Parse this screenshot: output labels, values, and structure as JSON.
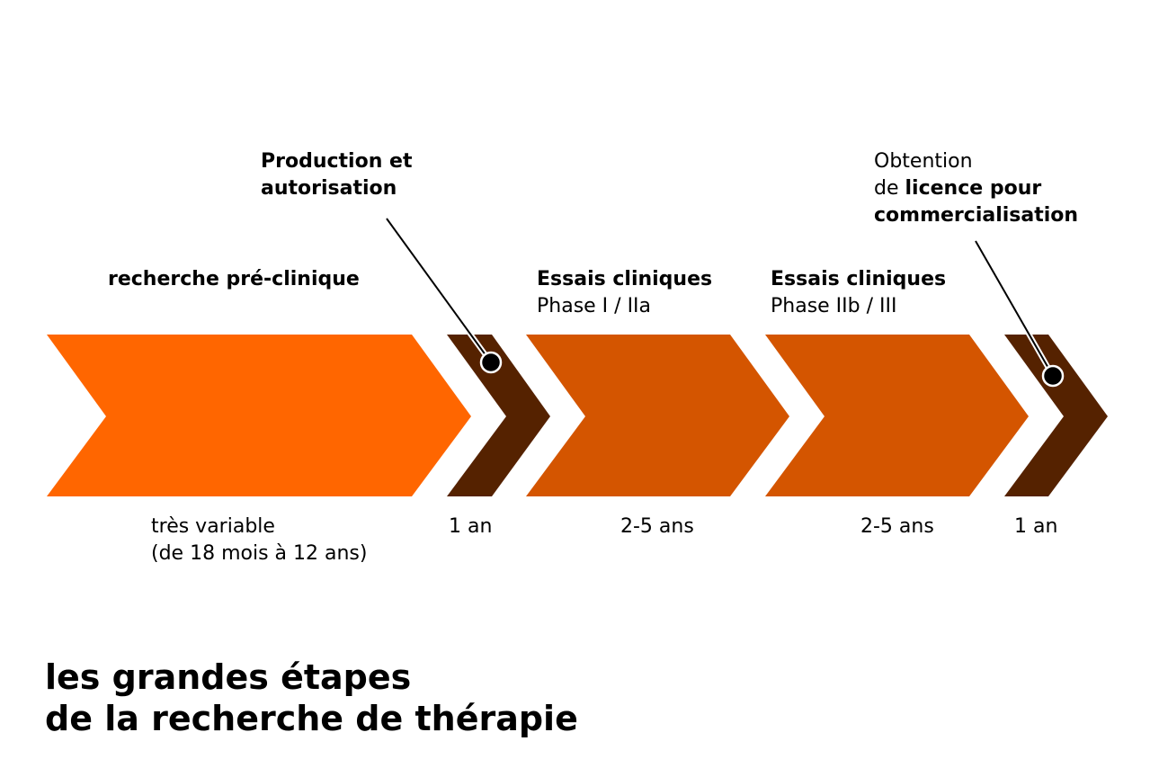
{
  "colors": {
    "stage_main": "#ff6600",
    "stage_clinical": "#d45500",
    "stage_short": "#552200",
    "callout": "#000000"
  },
  "stages": [
    {
      "label_line1": "recherche pré-clinique",
      "label_line2": "",
      "duration_line1": "très variable",
      "duration_line2": "(de 18 mois à 12 ans)",
      "color": "#ff6600"
    },
    {
      "label_line1": "",
      "label_line2": "",
      "duration_line1": "1 an",
      "duration_line2": "",
      "color": "#552200"
    },
    {
      "label_line1": "Essais cliniques",
      "label_line2": "Phase I / IIa",
      "duration_line1": "2-5 ans",
      "duration_line2": "",
      "color": "#d45500"
    },
    {
      "label_line1": "Essais cliniques",
      "label_line2": "Phase IIb / III",
      "duration_line1": "2-5 ans",
      "duration_line2": "",
      "color": "#d45500"
    },
    {
      "label_line1": "",
      "label_line2": "",
      "duration_line1": "1 an",
      "duration_line2": "",
      "color": "#552200"
    }
  ],
  "callouts": {
    "production": {
      "line1": "Production et",
      "line2": "autorisation"
    },
    "licence": {
      "line1": "Obtention",
      "line2_plain": "de ",
      "line2_bold": "licence pour",
      "line3": "commercialisation"
    }
  },
  "title": {
    "line1": "les grandes étapes",
    "line2": "de la recherche de thérapie"
  }
}
